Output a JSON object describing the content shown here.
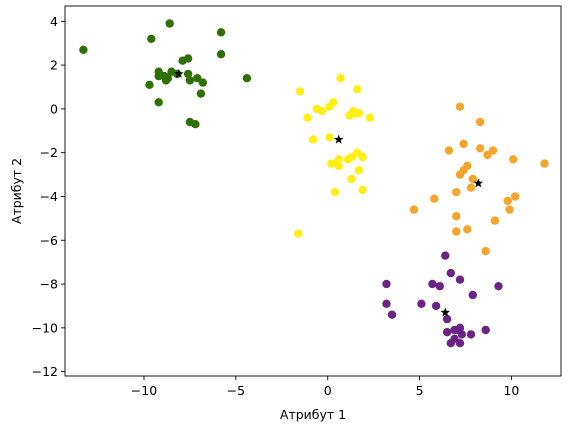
{
  "chart_data": {
    "type": "scatter",
    "title": "",
    "xlabel": "Атрибут 1",
    "ylabel": "Атрибут 2",
    "xlim": [
      -14.3,
      12.7
    ],
    "ylim": [
      -12.2,
      4.7
    ],
    "xticks": [
      -10,
      -5,
      0,
      5,
      10
    ],
    "yticks": [
      -12,
      -10,
      -8,
      -6,
      -4,
      -2,
      0,
      2,
      4
    ],
    "xtick_labels": [
      "−10",
      "−5",
      "0",
      "5",
      "10"
    ],
    "ytick_labels": [
      "−12",
      "−10",
      "−8",
      "−6",
      "−4",
      "−2",
      "0",
      "2",
      "4"
    ],
    "grid": false,
    "legend": "none",
    "series": [
      {
        "color": "#2e7004",
        "points": [
          [
            -13.3,
            2.7
          ],
          [
            -8.6,
            3.9
          ],
          [
            -9.6,
            3.2
          ],
          [
            -5.8,
            3.5
          ],
          [
            -5.8,
            2.5
          ],
          [
            -4.4,
            1.4
          ],
          [
            -9.2,
            1.7
          ],
          [
            -9.2,
            1.5
          ],
          [
            -8.8,
            1.3
          ],
          [
            -8.5,
            1.7
          ],
          [
            -8.9,
            1.5
          ],
          [
            -7.9,
            2.2
          ],
          [
            -7.6,
            2.3
          ],
          [
            -7.6,
            1.6
          ],
          [
            -7.1,
            1.4
          ],
          [
            -6.8,
            1.2
          ],
          [
            -7.5,
            1.3
          ],
          [
            -8.2,
            1.6
          ],
          [
            -9.7,
            1.1
          ],
          [
            -9.2,
            0.3
          ],
          [
            -6.9,
            0.7
          ],
          [
            -7.5,
            -0.6
          ],
          [
            -7.2,
            -0.7
          ],
          [
            -8.7,
            1.4
          ]
        ],
        "center": [
          -8.1,
          1.6
        ]
      },
      {
        "color": "#ffef14",
        "points": [
          [
            -1.5,
            0.8
          ],
          [
            0.7,
            1.4
          ],
          [
            1.6,
            0.9
          ],
          [
            -1.1,
            -0.4
          ],
          [
            -0.6,
            0.0
          ],
          [
            0.1,
            0.1
          ],
          [
            0.3,
            0.3
          ],
          [
            -0.3,
            -0.1
          ],
          [
            1.2,
            -0.3
          ],
          [
            1.5,
            -0.2
          ],
          [
            1.7,
            -0.2
          ],
          [
            2.3,
            -0.4
          ],
          [
            1.4,
            -0.1
          ],
          [
            -0.8,
            -1.4
          ],
          [
            0.1,
            -1.3
          ],
          [
            1.6,
            -2.0
          ],
          [
            1.9,
            -2.2
          ],
          [
            1.3,
            -2.2
          ],
          [
            1.1,
            -2.3
          ],
          [
            0.6,
            -2.3
          ],
          [
            0.5,
            -2.5
          ],
          [
            0.2,
            -2.5
          ],
          [
            0.6,
            -2.6
          ],
          [
            1.7,
            -2.8
          ],
          [
            1.3,
            -3.2
          ],
          [
            1.9,
            -3.7
          ],
          [
            0.4,
            -3.8
          ],
          [
            -1.6,
            -5.7
          ]
        ],
        "center": [
          0.6,
          -1.4
        ]
      },
      {
        "color": "#f4a52b",
        "points": [
          [
            7.2,
            0.1
          ],
          [
            8.3,
            -0.6
          ],
          [
            6.6,
            -1.9
          ],
          [
            7.4,
            -1.6
          ],
          [
            8.3,
            -1.8
          ],
          [
            9.0,
            -1.9
          ],
          [
            8.7,
            -2.1
          ],
          [
            10.1,
            -2.3
          ],
          [
            11.8,
            -2.5
          ],
          [
            7.6,
            -2.6
          ],
          [
            7.4,
            -2.8
          ],
          [
            7.2,
            -3.0
          ],
          [
            7.9,
            -3.2
          ],
          [
            7.8,
            -3.6
          ],
          [
            7.0,
            -3.8
          ],
          [
            5.8,
            -4.1
          ],
          [
            4.7,
            -4.6
          ],
          [
            9.8,
            -4.2
          ],
          [
            10.2,
            -4.0
          ],
          [
            9.9,
            -4.6
          ],
          [
            7.0,
            -4.9
          ],
          [
            9.1,
            -5.1
          ],
          [
            7.0,
            -5.6
          ],
          [
            7.6,
            -5.5
          ],
          [
            8.6,
            -6.5
          ]
        ],
        "center": [
          8.2,
          -3.4
        ]
      },
      {
        "color": "#6b2385",
        "points": [
          [
            6.4,
            -6.7
          ],
          [
            6.7,
            -7.5
          ],
          [
            7.2,
            -7.8
          ],
          [
            3.2,
            -8.0
          ],
          [
            5.7,
            -8.0
          ],
          [
            6.1,
            -8.1
          ],
          [
            7.9,
            -8.5
          ],
          [
            9.3,
            -8.1
          ],
          [
            3.2,
            -8.9
          ],
          [
            5.1,
            -8.9
          ],
          [
            5.9,
            -9.0
          ],
          [
            6.5,
            -9.6
          ],
          [
            3.5,
            -9.4
          ],
          [
            6.5,
            -10.2
          ],
          [
            6.9,
            -10.1
          ],
          [
            7.1,
            -10.1
          ],
          [
            7.2,
            -10.0
          ],
          [
            6.9,
            -10.5
          ],
          [
            7.3,
            -10.3
          ],
          [
            7.2,
            -10.7
          ],
          [
            6.7,
            -10.7
          ],
          [
            7.8,
            -10.3
          ],
          [
            8.6,
            -10.1
          ]
        ],
        "center": [
          6.4,
          -9.3
        ]
      }
    ],
    "center_marker": {
      "color": "#000000",
      "shape": "star"
    }
  }
}
